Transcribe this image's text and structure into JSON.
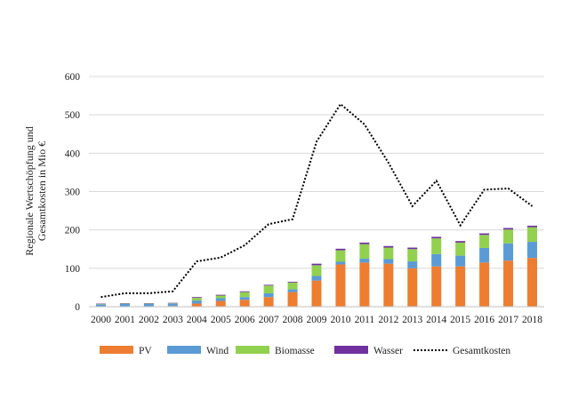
{
  "chart_data": {
    "type": "bar",
    "stacked": true,
    "title": "",
    "xlabel": "",
    "ylabel": "Regionale Wertschöpfung und Gesamtkosten in Mio €",
    "ylabel_lines": [
      "Regionale Wertschöpfung und",
      "Gesamtkosten in Mio €"
    ],
    "ylim": [
      0,
      600
    ],
    "yticks": [
      0,
      100,
      200,
      300,
      400,
      500,
      600
    ],
    "grid": true,
    "legend_position": "bottom",
    "categories": [
      "2000",
      "2001",
      "2002",
      "2003",
      "2004",
      "2005",
      "2006",
      "2007",
      "2008",
      "2009",
      "2010",
      "2011",
      "2012",
      "2013",
      "2014",
      "2015",
      "2016",
      "2017",
      "2018"
    ],
    "series": [
      {
        "name": "PV",
        "kind": "bar",
        "color": "#ED7D31",
        "values": [
          1,
          1,
          1,
          2,
          8,
          15,
          18,
          25,
          38,
          68,
          110,
          115,
          112,
          100,
          105,
          105,
          115,
          120,
          127
        ]
      },
      {
        "name": "Wind",
        "kind": "bar",
        "color": "#5B9BD5",
        "values": [
          5,
          6,
          6,
          6,
          8,
          7,
          7,
          10,
          7,
          12,
          7,
          10,
          12,
          18,
          32,
          28,
          38,
          45,
          42
        ]
      },
      {
        "name": "Biomasse",
        "kind": "bar",
        "color": "#92D050",
        "values": [
          1,
          1,
          1,
          1,
          7,
          7,
          13,
          20,
          18,
          28,
          30,
          38,
          30,
          32,
          41,
          34,
          34,
          36,
          38
        ]
      },
      {
        "name": "Wasser",
        "kind": "bar",
        "color": "#7030A0",
        "values": [
          1,
          1,
          1,
          1,
          2,
          2,
          2,
          2,
          2,
          4,
          4,
          4,
          4,
          4,
          4,
          4,
          4,
          4,
          4
        ]
      },
      {
        "name": "Gesamtkosten",
        "kind": "line",
        "color": "#000000",
        "dashed": true,
        "values": [
          25,
          35,
          35,
          40,
          118,
          128,
          160,
          215,
          228,
          430,
          528,
          475,
          375,
          262,
          328,
          212,
          305,
          308,
          262
        ]
      }
    ]
  }
}
